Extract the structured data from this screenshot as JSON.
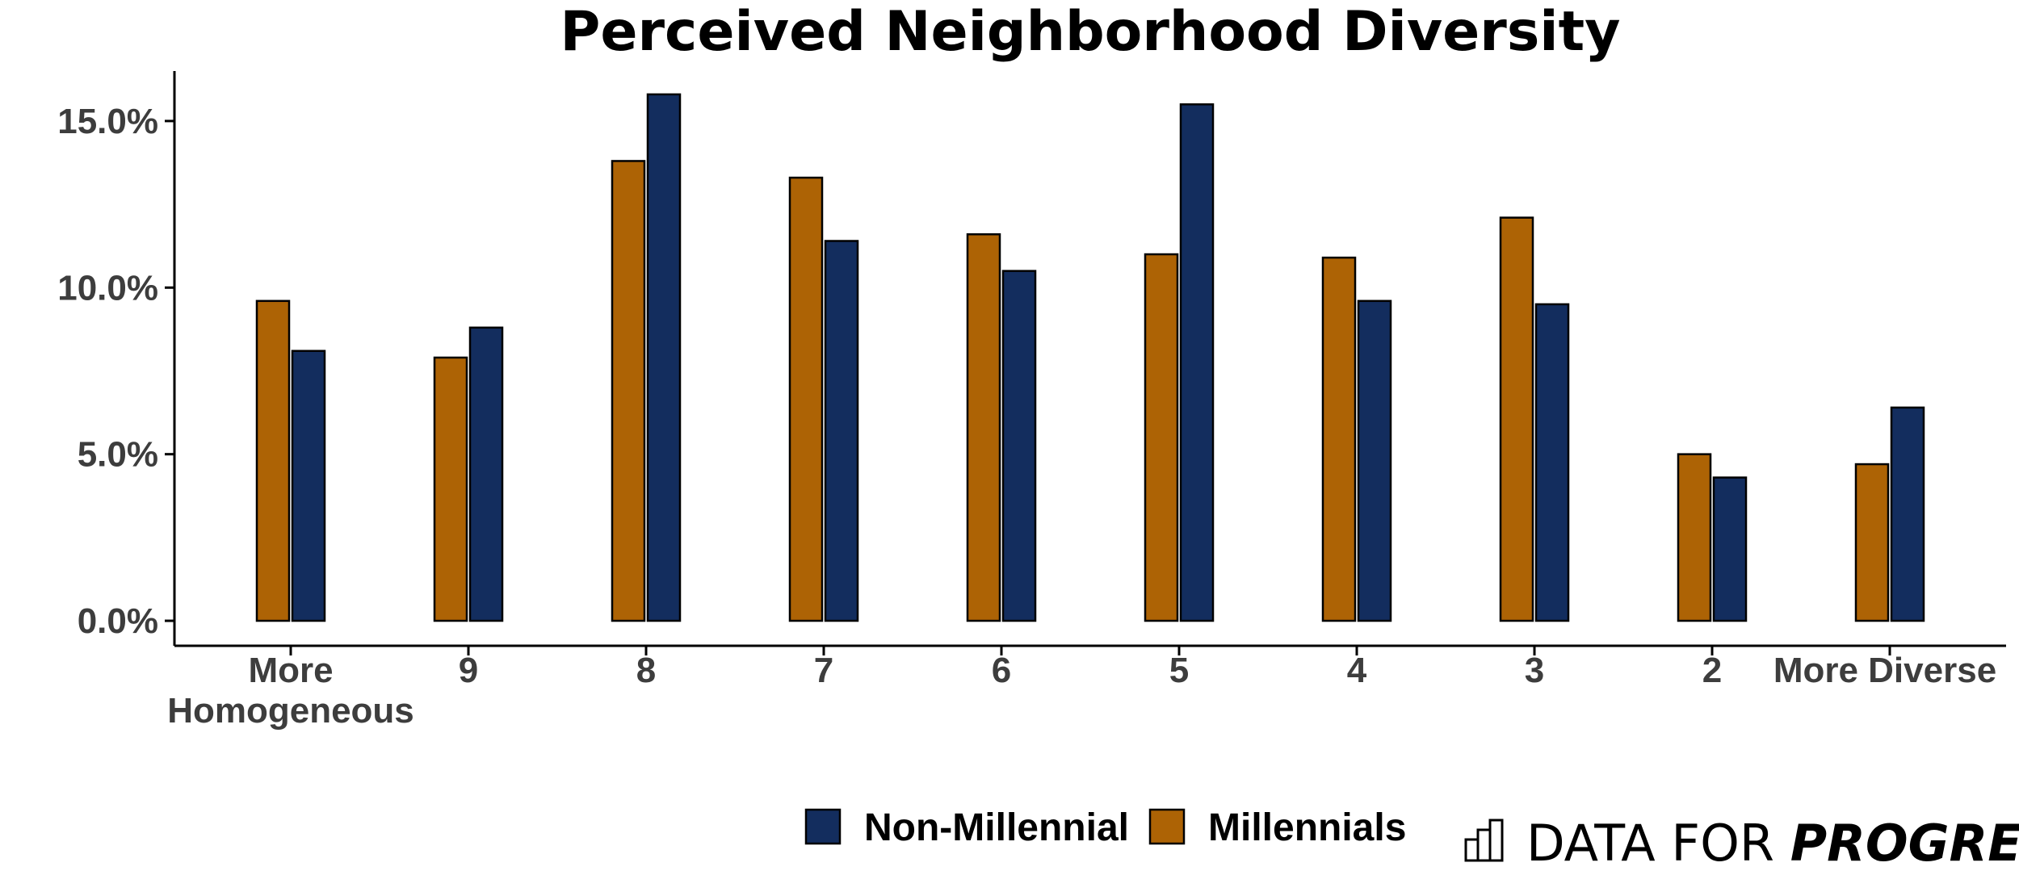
{
  "chart_data": {
    "type": "bar",
    "title": "Perceived Neighborhood Diversity",
    "categories": [
      [
        "More",
        "Homogeneous"
      ],
      [
        "9"
      ],
      [
        "8"
      ],
      [
        "7"
      ],
      [
        "6"
      ],
      [
        "5"
      ],
      [
        "4"
      ],
      [
        "3"
      ],
      [
        "2"
      ],
      [
        "More Diverse"
      ]
    ],
    "series": [
      {
        "name": "Millennials",
        "color": "#ad6305",
        "values": [
          9.6,
          7.9,
          13.8,
          13.3,
          11.6,
          11.0,
          10.9,
          12.1,
          5.0,
          4.7
        ]
      },
      {
        "name": "Non-Millennial",
        "color": "#132d5e",
        "values": [
          8.1,
          8.8,
          15.8,
          11.4,
          10.5,
          15.5,
          9.6,
          9.5,
          4.3,
          6.4
        ]
      }
    ],
    "y_ticks": [
      "0.0%",
      "5.0%",
      "10.0%",
      "15.0%"
    ],
    "y_tick_values": [
      0,
      5,
      10,
      15
    ],
    "ylim": [
      -0.75,
      16.5
    ],
    "xlabel": "",
    "ylabel": "",
    "grid": false,
    "legend": {
      "position": "bottom",
      "order": [
        "Non-Millennial",
        "Millennials"
      ]
    }
  },
  "branding": {
    "icon": "bar-chart-icon",
    "text_light": "DATA FOR",
    "text_strong": "PROGRESS"
  }
}
